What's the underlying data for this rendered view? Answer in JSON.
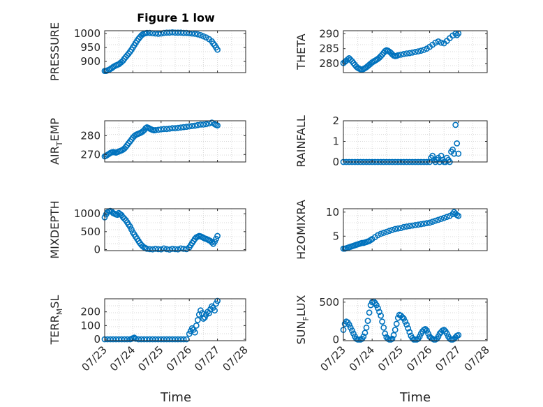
{
  "figure": {
    "title": "Figure 1 low",
    "xlabel": "Time",
    "date_ticks": [
      "07/23",
      "07/24",
      "07/25",
      "07/26",
      "07/27",
      "07/28"
    ],
    "marker_color": "#0072bd"
  },
  "chart_data": [
    {
      "type": "scatter",
      "ylabel": "PRESSURE",
      "ylim": [
        860,
        1010
      ],
      "yticks": [
        900,
        950,
        1000
      ],
      "xlim": [
        0,
        5
      ],
      "grid": true,
      "series": [
        {
          "x": [
            0.0,
            0.05,
            0.1,
            0.15,
            0.2,
            0.25,
            0.3,
            0.35,
            0.4,
            0.45,
            0.5,
            0.55,
            0.6,
            0.65,
            0.7,
            0.75,
            0.8,
            0.85,
            0.9,
            0.95,
            1.0,
            1.05,
            1.1,
            1.15,
            1.2,
            1.25,
            1.3,
            1.35,
            1.4,
            1.45,
            1.5,
            1.6,
            1.7,
            1.8,
            1.9,
            2.0,
            2.1,
            2.2,
            2.3,
            2.4,
            2.5,
            2.6,
            2.7,
            2.8,
            2.9,
            3.0,
            3.1,
            3.2,
            3.3,
            3.4,
            3.5,
            3.6,
            3.7,
            3.8,
            3.85,
            3.9,
            3.95,
            4.0
          ],
          "y": [
            866,
            866,
            868,
            870,
            873,
            876,
            880,
            883,
            886,
            888,
            890,
            894,
            898,
            903,
            910,
            916,
            922,
            928,
            935,
            942,
            950,
            958,
            966,
            974,
            981,
            987,
            993,
            997,
            1000,
            1001,
            1002,
            1002,
            1001,
            1000,
            999,
            1000,
            1002,
            1003,
            1003,
            1004,
            1003,
            1003,
            1003,
            1002,
            1002,
            1001,
            1000,
            999,
            997,
            994,
            990,
            986,
            980,
            972,
            964,
            958,
            950,
            942
          ]
        }
      ]
    },
    {
      "type": "scatter",
      "ylabel": "THETA",
      "ylim": [
        277,
        291
      ],
      "yticks": [
        280,
        285,
        290
      ],
      "xlim": [
        0,
        5
      ],
      "grid": true,
      "series": [
        {
          "x": [
            0.0,
            0.05,
            0.1,
            0.15,
            0.2,
            0.25,
            0.3,
            0.35,
            0.4,
            0.45,
            0.5,
            0.55,
            0.6,
            0.65,
            0.7,
            0.75,
            0.8,
            0.85,
            0.9,
            0.95,
            1.0,
            1.05,
            1.1,
            1.15,
            1.2,
            1.25,
            1.3,
            1.35,
            1.4,
            1.45,
            1.5,
            1.55,
            1.6,
            1.65,
            1.7,
            1.75,
            1.8,
            1.85,
            1.9,
            2.0,
            2.1,
            2.2,
            2.3,
            2.4,
            2.5,
            2.6,
            2.7,
            2.8,
            2.9,
            3.0,
            3.1,
            3.2,
            3.3,
            3.4,
            3.5,
            3.6,
            3.7,
            3.8,
            3.9,
            3.95,
            4.0
          ],
          "y": [
            280.2,
            280.6,
            281.0,
            281.4,
            281.8,
            281.3,
            280.8,
            280.2,
            279.6,
            279.0,
            278.6,
            278.3,
            278.1,
            278.0,
            278.2,
            278.5,
            278.8,
            279.2,
            279.6,
            280.0,
            280.4,
            280.7,
            281.0,
            281.3,
            281.6,
            282.0,
            282.5,
            283.0,
            283.6,
            284.2,
            284.5,
            284.3,
            284.0,
            283.6,
            283.1,
            282.7,
            282.5,
            282.6,
            282.8,
            283.0,
            283.2,
            283.4,
            283.5,
            283.7,
            283.9,
            284.1,
            284.3,
            284.6,
            285.0,
            285.6,
            286.3,
            287.0,
            287.4,
            287.0,
            286.8,
            287.6,
            288.5,
            289.4,
            290.0,
            289.5,
            290.1
          ]
        }
      ]
    },
    {
      "type": "scatter",
      "ylabel": "AIR_TEMP",
      "ylim": [
        266,
        288
      ],
      "yticks": [
        270,
        280
      ],
      "xlim": [
        0,
        5
      ],
      "grid": true,
      "series": [
        {
          "x": [
            0.0,
            0.05,
            0.1,
            0.15,
            0.2,
            0.25,
            0.3,
            0.35,
            0.4,
            0.45,
            0.5,
            0.55,
            0.6,
            0.65,
            0.7,
            0.75,
            0.8,
            0.85,
            0.9,
            0.95,
            1.0,
            1.05,
            1.1,
            1.15,
            1.2,
            1.25,
            1.3,
            1.35,
            1.4,
            1.45,
            1.5,
            1.55,
            1.6,
            1.65,
            1.7,
            1.75,
            1.8,
            1.9,
            2.0,
            2.1,
            2.2,
            2.3,
            2.4,
            2.5,
            2.6,
            2.7,
            2.8,
            2.9,
            3.0,
            3.1,
            3.2,
            3.3,
            3.4,
            3.5,
            3.6,
            3.7,
            3.8,
            3.9,
            3.95,
            4.0
          ],
          "y": [
            269.0,
            269.3,
            269.8,
            270.3,
            270.8,
            271.1,
            271.3,
            271.2,
            271.0,
            271.3,
            271.6,
            271.9,
            272.2,
            272.6,
            273.2,
            274.0,
            275.0,
            276.0,
            277.0,
            278.0,
            279.0,
            279.8,
            280.4,
            280.8,
            281.1,
            281.4,
            281.8,
            282.3,
            283.0,
            284.0,
            284.5,
            284.2,
            283.8,
            283.4,
            283.1,
            282.9,
            283.0,
            283.2,
            283.4,
            283.6,
            283.6,
            283.8,
            284.0,
            284.0,
            284.2,
            284.4,
            284.6,
            284.8,
            285.0,
            285.2,
            285.4,
            285.7,
            286.0,
            286.0,
            286.2,
            286.6,
            287.0,
            286.2,
            285.8,
            285.5
          ]
        }
      ]
    },
    {
      "type": "scatter",
      "ylabel": "RAINFALL",
      "ylim": [
        0,
        2
      ],
      "yticks": [
        0,
        1,
        2
      ],
      "xlim": [
        0,
        5
      ],
      "grid": true,
      "series": [
        {
          "x": [
            0.0,
            0.1,
            0.2,
            0.3,
            0.4,
            0.5,
            0.6,
            0.7,
            0.8,
            0.9,
            1.0,
            1.1,
            1.2,
            1.3,
            1.4,
            1.5,
            1.6,
            1.7,
            1.8,
            1.9,
            2.0,
            2.1,
            2.2,
            2.3,
            2.4,
            2.5,
            2.6,
            2.7,
            2.8,
            2.9,
            3.0,
            3.05,
            3.1,
            3.15,
            3.2,
            3.25,
            3.3,
            3.35,
            3.4,
            3.45,
            3.5,
            3.55,
            3.6,
            3.65,
            3.7,
            3.75,
            3.8,
            3.85,
            3.9,
            3.95,
            4.0
          ],
          "y": [
            0,
            0,
            0,
            0,
            0,
            0,
            0,
            0,
            0,
            0,
            0,
            0,
            0,
            0,
            0,
            0,
            0,
            0,
            0,
            0,
            0,
            0,
            0,
            0,
            0,
            0,
            0,
            0,
            0,
            0,
            0,
            0.2,
            0.3,
            0.1,
            0,
            0.1,
            0.2,
            0,
            0.3,
            0.1,
            0,
            0,
            0.2,
            0.1,
            0,
            0.5,
            0.6,
            0.4,
            1.8,
            0.9,
            0.4
          ]
        }
      ]
    },
    {
      "type": "scatter",
      "ylabel": "MIXDEPTH",
      "ylim": [
        -30,
        1140
      ],
      "yticks": [
        0,
        500,
        1000
      ],
      "xlim": [
        0,
        5
      ],
      "grid": true,
      "series": [
        {
          "x": [
            0.0,
            0.05,
            0.1,
            0.15,
            0.2,
            0.25,
            0.3,
            0.35,
            0.4,
            0.45,
            0.5,
            0.55,
            0.6,
            0.65,
            0.7,
            0.75,
            0.8,
            0.85,
            0.9,
            0.95,
            1.0,
            1.05,
            1.1,
            1.15,
            1.2,
            1.25,
            1.3,
            1.35,
            1.4,
            1.45,
            1.5,
            1.6,
            1.7,
            1.8,
            1.9,
            2.0,
            2.1,
            2.2,
            2.3,
            2.4,
            2.5,
            2.6,
            2.7,
            2.8,
            2.9,
            3.0,
            3.05,
            3.1,
            3.15,
            3.2,
            3.25,
            3.3,
            3.35,
            3.4,
            3.45,
            3.5,
            3.55,
            3.6,
            3.65,
            3.7,
            3.75,
            3.8,
            3.85,
            3.9,
            3.95,
            4.0
          ],
          "y": [
            900,
            980,
            1040,
            1070,
            1080,
            1060,
            1020,
            1000,
            980,
            970,
            1020,
            990,
            960,
            900,
            860,
            820,
            760,
            700,
            640,
            560,
            480,
            420,
            360,
            300,
            240,
            180,
            130,
            90,
            60,
            40,
            20,
            10,
            5,
            20,
            10,
            5,
            30,
            10,
            0,
            20,
            10,
            5,
            30,
            20,
            10,
            60,
            120,
            180,
            240,
            300,
            340,
            360,
            380,
            370,
            350,
            330,
            310,
            300,
            280,
            260,
            240,
            200,
            160,
            220,
            300,
            380
          ]
        }
      ]
    },
    {
      "type": "scatter",
      "ylabel": "H2OMIXRA",
      "ylim": [
        2,
        10.7
      ],
      "yticks": [
        5,
        10
      ],
      "xlim": [
        0,
        5
      ],
      "grid": true,
      "series": [
        {
          "x": [
            0.0,
            0.05,
            0.1,
            0.15,
            0.2,
            0.25,
            0.3,
            0.35,
            0.4,
            0.45,
            0.5,
            0.55,
            0.6,
            0.65,
            0.7,
            0.75,
            0.8,
            0.85,
            0.9,
            0.95,
            1.0,
            1.1,
            1.2,
            1.3,
            1.4,
            1.5,
            1.6,
            1.7,
            1.8,
            1.9,
            2.0,
            2.1,
            2.2,
            2.3,
            2.4,
            2.5,
            2.6,
            2.7,
            2.8,
            2.9,
            3.0,
            3.1,
            3.2,
            3.3,
            3.4,
            3.5,
            3.6,
            3.7,
            3.8,
            3.85,
            3.9,
            3.95,
            4.0
          ],
          "y": [
            2.4,
            2.4,
            2.5,
            2.6,
            2.7,
            2.8,
            2.9,
            3.0,
            3.1,
            3.2,
            3.3,
            3.4,
            3.5,
            3.6,
            3.6,
            3.7,
            3.8,
            3.9,
            4.0,
            4.2,
            4.4,
            4.8,
            5.2,
            5.5,
            5.7,
            5.9,
            6.1,
            6.3,
            6.5,
            6.6,
            6.7,
            6.9,
            7.0,
            7.1,
            7.2,
            7.3,
            7.4,
            7.5,
            7.6,
            7.7,
            7.8,
            8.0,
            8.2,
            8.4,
            8.6,
            8.8,
            9.0,
            9.2,
            9.6,
            10.0,
            9.7,
            9.4,
            9.2
          ]
        }
      ]
    },
    {
      "type": "scatter",
      "ylabel": "TERR_MSL",
      "ylim": [
        -10,
        295
      ],
      "yticks": [
        0,
        100,
        200
      ],
      "xlim": [
        0,
        5
      ],
      "grid": true,
      "series": [
        {
          "x": [
            0.0,
            0.1,
            0.2,
            0.3,
            0.4,
            0.5,
            0.6,
            0.7,
            0.8,
            0.9,
            0.95,
            1.0,
            1.05,
            1.1,
            1.2,
            1.3,
            1.4,
            1.5,
            1.6,
            1.7,
            1.8,
            1.9,
            2.0,
            2.1,
            2.2,
            2.3,
            2.4,
            2.5,
            2.6,
            2.7,
            2.8,
            2.9,
            3.0,
            3.05,
            3.1,
            3.15,
            3.2,
            3.25,
            3.3,
            3.35,
            3.4,
            3.45,
            3.5,
            3.55,
            3.6,
            3.65,
            3.7,
            3.75,
            3.8,
            3.85,
            3.9,
            3.95,
            4.0
          ],
          "y": [
            0,
            0,
            0,
            0,
            0,
            0,
            0,
            0,
            0,
            0,
            3,
            8,
            12,
            4,
            0,
            0,
            0,
            0,
            0,
            0,
            0,
            0,
            0,
            0,
            0,
            0,
            0,
            0,
            0,
            0,
            0,
            0,
            40,
            60,
            80,
            70,
            50,
            100,
            140,
            180,
            210,
            190,
            150,
            160,
            180,
            200,
            190,
            220,
            240,
            230,
            210,
            260,
            280
          ]
        }
      ]
    },
    {
      "type": "scatter",
      "ylabel": "SUN_FLUX",
      "ylim": [
        -15,
        545
      ],
      "yticks": [
        0,
        500
      ],
      "xlim": [
        0,
        5
      ],
      "grid": true,
      "series": [
        {
          "x": [
            0.0,
            0.05,
            0.1,
            0.15,
            0.2,
            0.25,
            0.3,
            0.35,
            0.4,
            0.45,
            0.5,
            0.55,
            0.6,
            0.65,
            0.7,
            0.75,
            0.8,
            0.85,
            0.9,
            0.95,
            1.0,
            1.05,
            1.1,
            1.15,
            1.2,
            1.25,
            1.3,
            1.35,
            1.4,
            1.45,
            1.5,
            1.55,
            1.6,
            1.65,
            1.7,
            1.75,
            1.8,
            1.85,
            1.9,
            1.95,
            2.0,
            2.05,
            2.1,
            2.15,
            2.2,
            2.25,
            2.3,
            2.35,
            2.4,
            2.45,
            2.5,
            2.55,
            2.6,
            2.65,
            2.7,
            2.75,
            2.8,
            2.85,
            2.9,
            2.95,
            3.0,
            3.05,
            3.1,
            3.15,
            3.2,
            3.25,
            3.3,
            3.35,
            3.4,
            3.45,
            3.5,
            3.55,
            3.6,
            3.65,
            3.7,
            3.75,
            3.8,
            3.85,
            3.9,
            3.95,
            4.0
          ],
          "y": [
            130,
            210,
            240,
            230,
            200,
            160,
            120,
            80,
            40,
            10,
            0,
            0,
            0,
            10,
            40,
            90,
            160,
            250,
            360,
            460,
            500,
            510,
            490,
            460,
            420,
            370,
            320,
            240,
            160,
            80,
            30,
            10,
            0,
            0,
            10,
            60,
            130,
            210,
            290,
            330,
            320,
            300,
            280,
            240,
            200,
            150,
            100,
            50,
            20,
            0,
            0,
            0,
            10,
            40,
            80,
            110,
            130,
            140,
            120,
            80,
            40,
            20,
            10,
            0,
            0,
            10,
            40,
            80,
            100,
            120,
            130,
            110,
            80,
            40,
            10,
            0,
            0,
            10,
            30,
            50,
            60
          ]
        }
      ]
    }
  ]
}
